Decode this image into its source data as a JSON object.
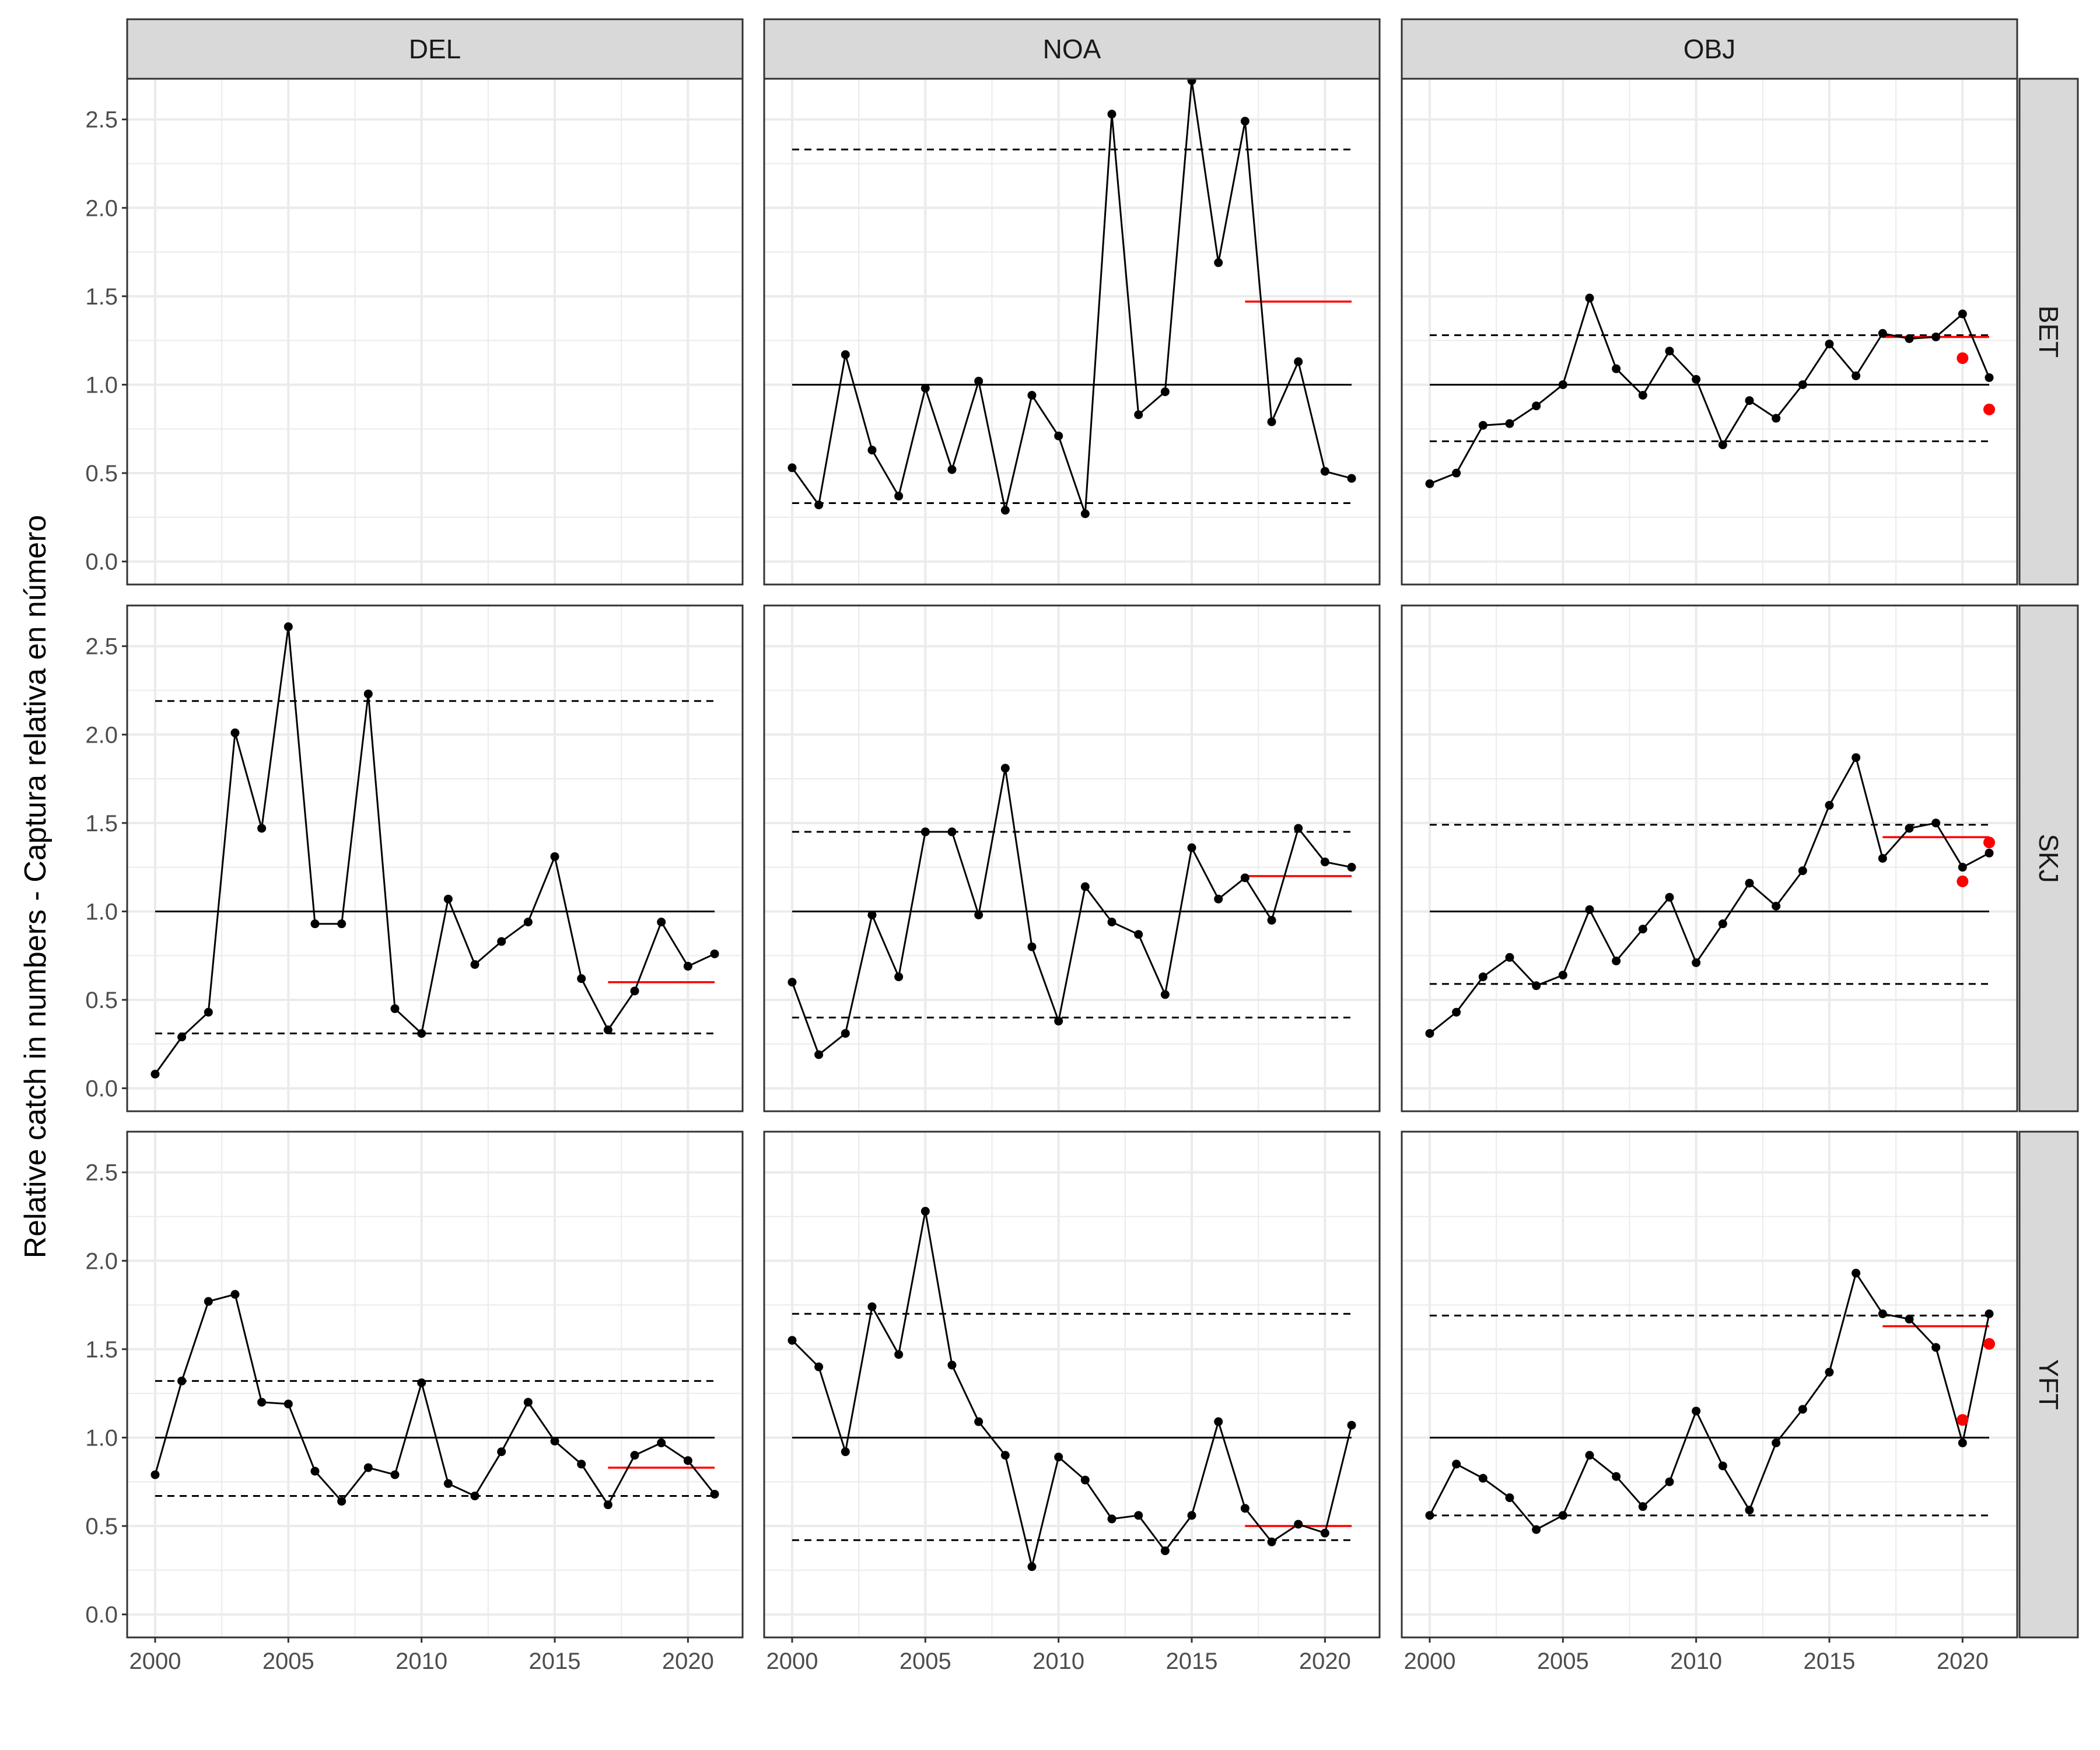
{
  "chart_data": {
    "type": "line",
    "facet_layout": "grid",
    "columns": [
      "DEL",
      "NOA",
      "OBJ"
    ],
    "rows": [
      "BET",
      "SKJ",
      "YFT"
    ],
    "ylabel": "Relative catch in numbers - Captura relativa en número",
    "xlabel": "",
    "xlim": [
      2000,
      2021
    ],
    "ylim": [
      0,
      2.6
    ],
    "x_ticks": [
      "2000",
      "2005",
      "2010",
      "2015",
      "2020"
    ],
    "y_ticks": [
      "0.0",
      "0.5",
      "1.0",
      "1.5",
      "2.0",
      "2.5"
    ],
    "grid": true,
    "colors": {
      "series": "#000000",
      "recent_mean": "#ff0000",
      "strip": "#d9d9d9",
      "grid": "#ebebeb"
    },
    "panels": [
      {
        "col": "DEL",
        "row": "BET",
        "x": [],
        "y": [],
        "upper": null,
        "lower": null,
        "reference": null,
        "recent_mean": null,
        "red_points": []
      },
      {
        "col": "NOA",
        "row": "BET",
        "x": [
          2000,
          2001,
          2002,
          2003,
          2004,
          2005,
          2006,
          2007,
          2008,
          2009,
          2010,
          2011,
          2012,
          2013,
          2014,
          2015,
          2016,
          2017,
          2018,
          2019,
          2020,
          2021
        ],
        "y": [
          0.53,
          0.32,
          1.17,
          0.63,
          0.37,
          0.98,
          0.52,
          1.02,
          0.29,
          0.94,
          0.71,
          0.27,
          2.53,
          0.83,
          0.96,
          2.72,
          1.69,
          2.49,
          0.79,
          1.13,
          0.51,
          0.47
        ],
        "upper": 2.33,
        "lower": 0.33,
        "reference": 1.0,
        "recent_mean": {
          "x": [
            2017,
            2021
          ],
          "y": 1.47
        },
        "red_points": []
      },
      {
        "col": "OBJ",
        "row": "BET",
        "x": [
          2000,
          2001,
          2002,
          2003,
          2004,
          2005,
          2006,
          2007,
          2008,
          2009,
          2010,
          2011,
          2012,
          2013,
          2014,
          2015,
          2016,
          2017,
          2018,
          2019,
          2020,
          2021
        ],
        "y": [
          0.44,
          0.5,
          0.77,
          0.78,
          0.88,
          1.0,
          1.49,
          1.09,
          0.94,
          1.19,
          1.03,
          0.66,
          0.91,
          0.81,
          1.0,
          1.23,
          1.05,
          1.29,
          1.26,
          1.27,
          1.4,
          1.04
        ],
        "upper": 1.28,
        "lower": 0.68,
        "reference": 1.0,
        "recent_mean": {
          "x": [
            2017,
            2021
          ],
          "y": 1.27
        },
        "red_points": [
          {
            "x": 2020,
            "y": 1.15
          },
          {
            "x": 2021,
            "y": 0.86
          }
        ]
      },
      {
        "col": "DEL",
        "row": "SKJ",
        "x": [
          2000,
          2001,
          2002,
          2003,
          2004,
          2005,
          2006,
          2007,
          2008,
          2009,
          2010,
          2011,
          2012,
          2013,
          2014,
          2015,
          2016,
          2017,
          2018,
          2019,
          2020,
          2021
        ],
        "y": [
          0.08,
          0.29,
          0.43,
          2.01,
          1.47,
          2.61,
          0.93,
          0.93,
          2.23,
          0.45,
          0.31,
          1.07,
          0.7,
          0.83,
          0.94,
          1.31,
          0.62,
          0.33,
          0.55,
          0.94,
          0.69,
          0.76
        ],
        "upper": 2.19,
        "lower": 0.31,
        "reference": 1.0,
        "recent_mean": {
          "x": [
            2017,
            2021
          ],
          "y": 0.6
        },
        "red_points": []
      },
      {
        "col": "NOA",
        "row": "SKJ",
        "x": [
          2000,
          2001,
          2002,
          2003,
          2004,
          2005,
          2006,
          2007,
          2008,
          2009,
          2010,
          2011,
          2012,
          2013,
          2014,
          2015,
          2016,
          2017,
          2018,
          2019,
          2020,
          2021
        ],
        "y": [
          0.6,
          0.19,
          0.31,
          0.98,
          0.63,
          1.45,
          1.45,
          0.98,
          1.81,
          0.8,
          0.38,
          1.14,
          0.94,
          0.87,
          0.53,
          1.36,
          1.07,
          1.19,
          0.95,
          1.47,
          1.28,
          1.25
        ],
        "upper": 1.45,
        "lower": 0.4,
        "reference": 1.0,
        "recent_mean": {
          "x": [
            2017,
            2021
          ],
          "y": 1.2
        },
        "red_points": []
      },
      {
        "col": "OBJ",
        "row": "SKJ",
        "x": [
          2000,
          2001,
          2002,
          2003,
          2004,
          2005,
          2006,
          2007,
          2008,
          2009,
          2010,
          2011,
          2012,
          2013,
          2014,
          2015,
          2016,
          2017,
          2018,
          2019,
          2020,
          2021
        ],
        "y": [
          0.31,
          0.43,
          0.63,
          0.74,
          0.58,
          0.64,
          1.01,
          0.72,
          0.9,
          1.08,
          0.71,
          0.93,
          1.16,
          1.03,
          1.23,
          1.6,
          1.87,
          1.3,
          1.47,
          1.5,
          1.25,
          1.33
        ],
        "upper": 1.49,
        "lower": 0.59,
        "reference": 1.0,
        "recent_mean": {
          "x": [
            2017,
            2021
          ],
          "y": 1.42
        },
        "red_points": [
          {
            "x": 2020,
            "y": 1.17
          },
          {
            "x": 2021,
            "y": 1.39
          }
        ]
      },
      {
        "col": "DEL",
        "row": "YFT",
        "x": [
          2000,
          2001,
          2002,
          2003,
          2004,
          2005,
          2006,
          2007,
          2008,
          2009,
          2010,
          2011,
          2012,
          2013,
          2014,
          2015,
          2016,
          2017,
          2018,
          2019,
          2020,
          2021
        ],
        "y": [
          0.79,
          1.32,
          1.77,
          1.81,
          1.2,
          1.19,
          0.81,
          0.64,
          0.83,
          0.79,
          1.31,
          0.74,
          0.67,
          0.92,
          1.2,
          0.98,
          0.85,
          0.62,
          0.9,
          0.97,
          0.87,
          0.68
        ],
        "upper": 1.32,
        "lower": 0.67,
        "reference": 1.0,
        "recent_mean": {
          "x": [
            2017,
            2021
          ],
          "y": 0.83
        },
        "red_points": []
      },
      {
        "col": "NOA",
        "row": "YFT",
        "x": [
          2000,
          2001,
          2002,
          2003,
          2004,
          2005,
          2006,
          2007,
          2008,
          2009,
          2010,
          2011,
          2012,
          2013,
          2014,
          2015,
          2016,
          2017,
          2018,
          2019,
          2020,
          2021
        ],
        "y": [
          1.55,
          1.4,
          0.92,
          1.74,
          1.47,
          2.28,
          1.41,
          1.09,
          0.9,
          0.27,
          0.89,
          0.76,
          0.54,
          0.56,
          0.36,
          0.56,
          1.09,
          0.6,
          0.41,
          0.51,
          0.46,
          1.07
        ],
        "upper": 1.7,
        "lower": 0.42,
        "reference": 1.0,
        "recent_mean": {
          "x": [
            2017,
            2021
          ],
          "y": 0.5
        },
        "red_points": []
      },
      {
        "col": "OBJ",
        "row": "YFT",
        "x": [
          2000,
          2001,
          2002,
          2003,
          2004,
          2005,
          2006,
          2007,
          2008,
          2009,
          2010,
          2011,
          2012,
          2013,
          2014,
          2015,
          2016,
          2017,
          2018,
          2019,
          2020,
          2021
        ],
        "y": [
          0.56,
          0.85,
          0.77,
          0.66,
          0.48,
          0.56,
          0.9,
          0.78,
          0.61,
          0.75,
          1.15,
          0.84,
          0.59,
          0.97,
          1.16,
          1.37,
          1.93,
          1.7,
          1.67,
          1.51,
          0.97,
          1.7
        ],
        "upper": 1.69,
        "lower": 0.56,
        "reference": 1.0,
        "recent_mean": {
          "x": [
            2017,
            2021
          ],
          "y": 1.63
        },
        "red_points": [
          {
            "x": 2020,
            "y": 1.1
          },
          {
            "x": 2021,
            "y": 1.53
          }
        ]
      }
    ]
  }
}
